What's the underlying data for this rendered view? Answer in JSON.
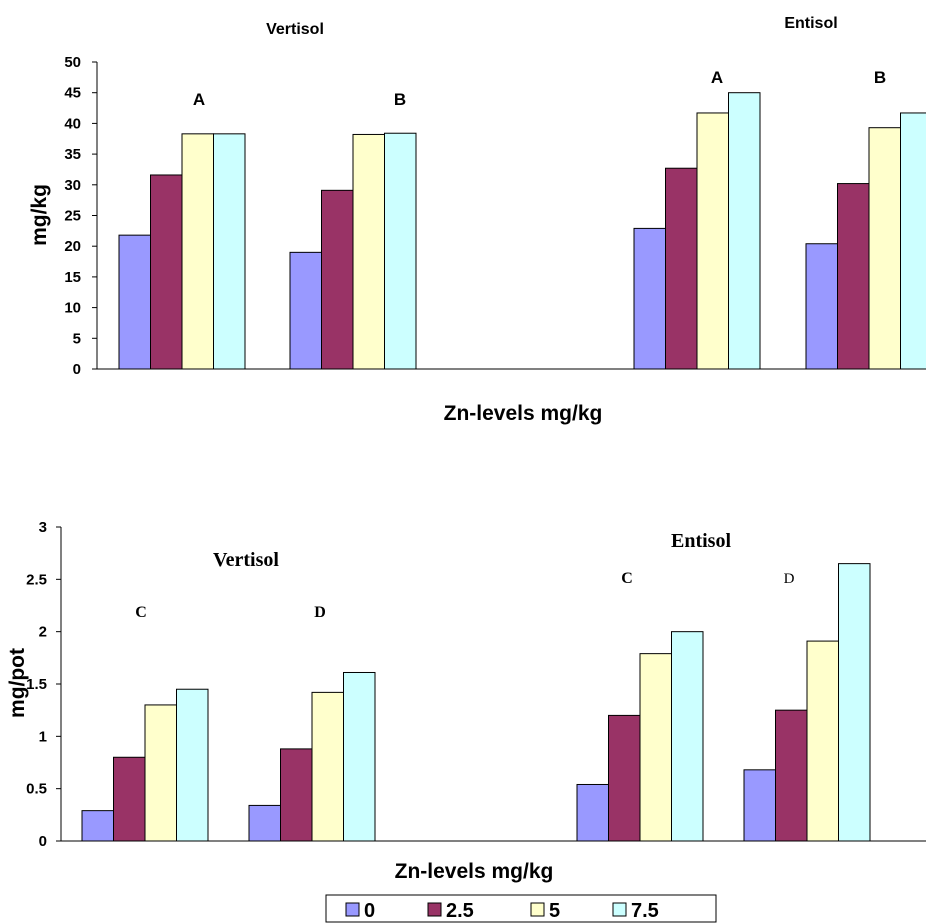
{
  "colors": {
    "0": "#9999ff",
    "2.5": "#993366",
    "5": "#ffffcc",
    "7.5": "#ccffff"
  },
  "legend": {
    "items": [
      {
        "label": "0",
        "color": "#9999ff"
      },
      {
        "label": "2.5",
        "color": "#993366"
      },
      {
        "label": "5",
        "color": "#ffffcc"
      },
      {
        "label": "7.5",
        "color": "#ccffff"
      }
    ]
  },
  "chart_data": [
    {
      "type": "bar",
      "ylabel": "mg/kg",
      "xlabel": "Zn-levels mg/kg",
      "ylim": [
        0,
        50
      ],
      "yticks": [
        "0",
        "5",
        "10",
        "15",
        "20",
        "25",
        "30",
        "35",
        "40",
        "45",
        "50"
      ],
      "group_titles": [
        "Vertisol",
        "Entisol"
      ],
      "panel_labels": [
        "A",
        "B",
        "A",
        "B"
      ],
      "series_labels": [
        "0",
        "2.5",
        "5",
        "7.5"
      ],
      "groups": [
        {
          "soil": "Vertisol",
          "panel": "A",
          "values": [
            21.8,
            31.6,
            38.3,
            38.3
          ]
        },
        {
          "soil": "Vertisol",
          "panel": "B",
          "values": [
            19.0,
            29.1,
            38.2,
            38.4
          ]
        },
        {
          "soil": "Entisol",
          "panel": "A",
          "values": [
            22.9,
            32.7,
            41.7,
            45.0
          ]
        },
        {
          "soil": "Entisol",
          "panel": "B",
          "values": [
            20.4,
            30.2,
            39.3,
            41.7
          ]
        }
      ]
    },
    {
      "type": "bar",
      "ylabel": "mg/pot",
      "xlabel": "Zn-levels mg/kg",
      "ylim": [
        0,
        3
      ],
      "yticks": [
        "0",
        "0.5",
        "1",
        "1.5",
        "2",
        "2.5",
        "3"
      ],
      "group_titles": [
        "Vertisol",
        "Entisol"
      ],
      "panel_labels": [
        "C",
        "D",
        "C",
        "D"
      ],
      "series_labels": [
        "0",
        "2.5",
        "5",
        "7.5"
      ],
      "groups": [
        {
          "soil": "Vertisol",
          "panel": "C",
          "values": [
            0.29,
            0.8,
            1.3,
            1.45
          ]
        },
        {
          "soil": "Vertisol",
          "panel": "D",
          "values": [
            0.34,
            0.88,
            1.42,
            1.61
          ]
        },
        {
          "soil": "Entisol",
          "panel": "C",
          "values": [
            0.54,
            1.2,
            1.79,
            2.0
          ]
        },
        {
          "soil": "Entisol",
          "panel": "D",
          "values": [
            0.68,
            1.25,
            1.91,
            2.65
          ]
        }
      ]
    }
  ]
}
